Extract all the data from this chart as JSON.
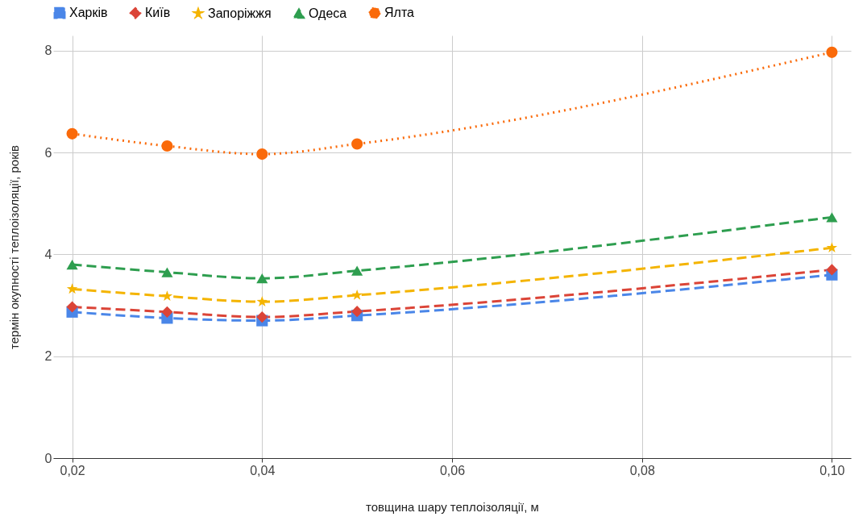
{
  "chart_data": {
    "type": "line",
    "xlabel": "товщина шару теплоізоляції, м",
    "ylabel": "термін окупності теплоізоляції, років",
    "x": [
      0.02,
      0.03,
      0.04,
      0.05,
      0.1
    ],
    "series": [
      {
        "name": "Харків",
        "color": "#4a86e8",
        "marker": "square",
        "line_style": "dashed",
        "values": [
          2.87,
          2.75,
          2.7,
          2.8,
          3.6
        ]
      },
      {
        "name": "Київ",
        "color": "#db4437",
        "marker": "diamond",
        "line_style": "dashed",
        "values": [
          2.97,
          2.87,
          2.77,
          2.88,
          3.7
        ]
      },
      {
        "name": "Запоріжжя",
        "color": "#f4b400",
        "marker": "star",
        "line_style": "dashed",
        "values": [
          3.32,
          3.18,
          3.07,
          3.2,
          4.13
        ]
      },
      {
        "name": "Одеса",
        "color": "#2e9e4f",
        "marker": "triangle",
        "line_style": "dashed",
        "values": [
          3.8,
          3.65,
          3.53,
          3.68,
          4.73
        ]
      },
      {
        "name": "Ялта",
        "color": "#fa6a0a",
        "marker": "circle",
        "line_style": "dotted",
        "values": [
          6.37,
          6.13,
          5.97,
          6.17,
          7.97
        ]
      }
    ],
    "xlim": [
      0.018,
      0.102
    ],
    "xticks": [
      {
        "value": 0.02,
        "label": "0,02"
      },
      {
        "value": 0.04,
        "label": "0,04"
      },
      {
        "value": 0.06,
        "label": "0,06"
      },
      {
        "value": 0.08,
        "label": "0,08"
      },
      {
        "value": 0.1,
        "label": "0,10"
      }
    ],
    "ylim": [
      0,
      8.3
    ],
    "yticks": [
      0,
      2,
      4,
      6,
      8
    ],
    "grid": true,
    "legend": "top"
  }
}
